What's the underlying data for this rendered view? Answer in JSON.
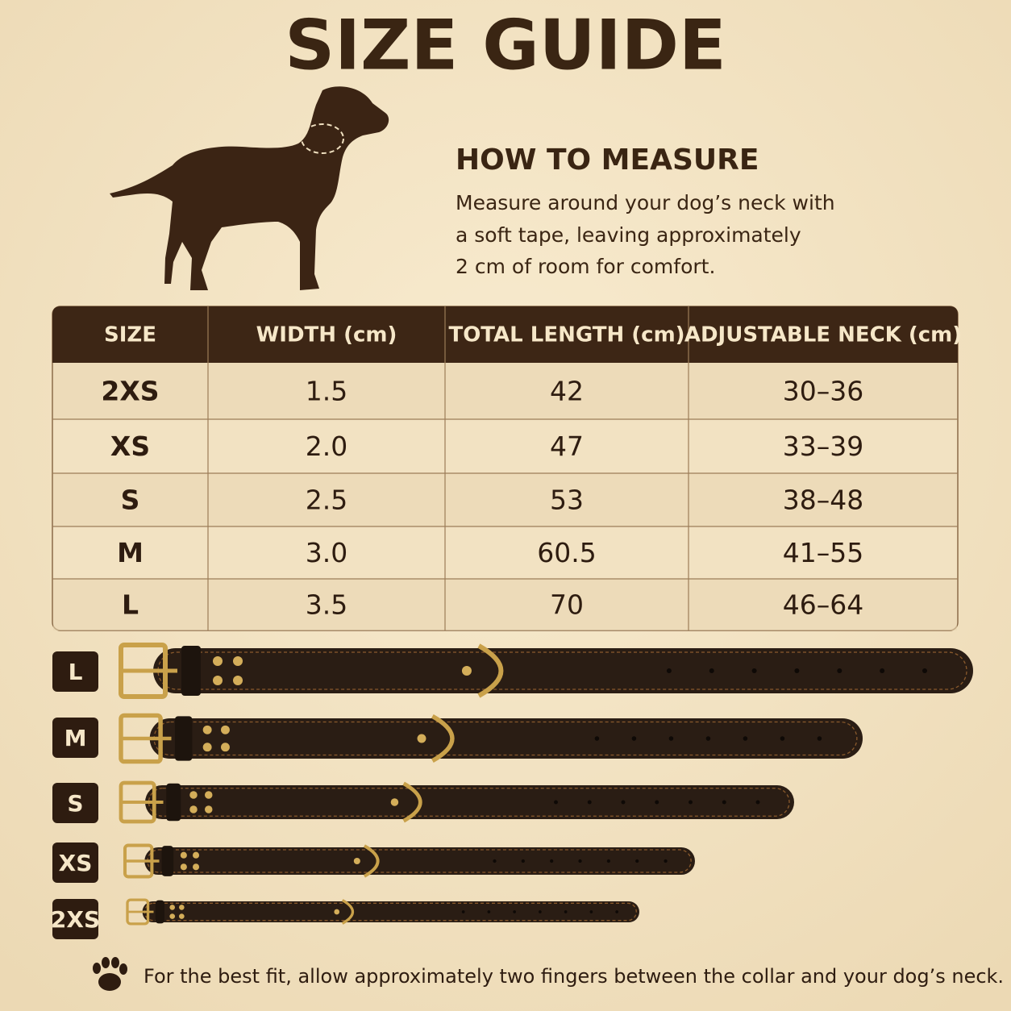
{
  "title": "SIZE GUIDE",
  "how_to_measure": {
    "heading": "HOW TO MEASURE",
    "lines": [
      "Measure around your dog’s neck with",
      "a soft tape, leaving approximately",
      "2 cm of room for comfort."
    ]
  },
  "table": {
    "headers": [
      "SIZE",
      "WIDTH (cm)",
      "TOTAL LENGTH (cm)",
      "ADJUSTABLE NECK (cm)"
    ],
    "rows": [
      [
        "2XS",
        "1.5",
        "42",
        "30–36"
      ],
      [
        "XS",
        "2.0",
        "47",
        "33–39"
      ],
      [
        "S",
        "2.5",
        "53",
        "38–48"
      ],
      [
        "M",
        "3.0",
        "60.5",
        "41–55"
      ],
      [
        "L",
        "3.5",
        "70",
        "46–64"
      ]
    ]
  },
  "collars": [
    "L",
    "M",
    "S",
    "XS",
    "2XS"
  ],
  "footer": "For the best fit, allow approximately two fingers between the collar and your dog’s neck."
}
